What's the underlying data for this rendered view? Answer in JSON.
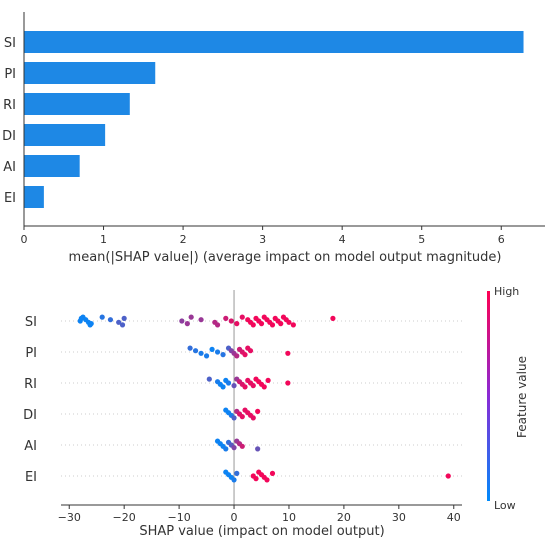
{
  "colors": {
    "bar": "#1e88e5",
    "low": "#008afb",
    "high": "#ff0052",
    "axis": "#333333",
    "grid": "#cccccc",
    "zero_line": "#999999"
  },
  "chart_data": [
    {
      "type": "bar",
      "orientation": "horizontal",
      "categories": [
        "SI",
        "PI",
        "RI",
        "DI",
        "AI",
        "EI"
      ],
      "values": [
        6.28,
        1.65,
        1.33,
        1.02,
        0.7,
        0.25
      ],
      "xlabel": "mean(|SHAP value|) (average impact on model output magnitude)",
      "xlim": [
        0,
        6.55
      ],
      "xticks": [
        "0",
        "1",
        "2",
        "3",
        "4",
        "5",
        "6"
      ],
      "grid": false
    },
    {
      "type": "scatter",
      "subtype": "beeswarm",
      "categories": [
        "SI",
        "PI",
        "RI",
        "DI",
        "AI",
        "EI"
      ],
      "xlabel": "SHAP value (impact on model output)",
      "xlim": [
        -31.5,
        41.5
      ],
      "xticks": [
        "−30",
        "−20",
        "−10",
        "0",
        "10",
        "20",
        "30",
        "40"
      ],
      "colorbar": {
        "label": "Feature value",
        "high": "High",
        "low": "Low"
      },
      "series": [
        {
          "category": "SI",
          "points": [
            [
              -27.5,
              0.05
            ],
            [
              -27,
              0.05
            ],
            [
              -26.5,
              0.05
            ],
            [
              -26.2,
              0.05
            ],
            [
              -27.8,
              0.05
            ],
            [
              -28,
              0.05
            ],
            [
              -26,
              0.05
            ],
            [
              -24,
              0.15
            ],
            [
              -22.5,
              0.2
            ],
            [
              -21,
              0.3
            ],
            [
              -20.3,
              0.3
            ],
            [
              -20,
              0.3
            ],
            [
              -9.5,
              0.55
            ],
            [
              -8.5,
              0.6
            ],
            [
              -7.8,
              0.6
            ],
            [
              -6,
              0.6
            ],
            [
              -3.5,
              0.7
            ],
            [
              -3,
              0.7
            ],
            [
              -1.5,
              0.8
            ],
            [
              -0.5,
              0.85
            ],
            [
              0.5,
              0.9
            ],
            [
              1.5,
              0.9
            ],
            [
              2.5,
              0.95
            ],
            [
              3,
              0.95
            ],
            [
              3.5,
              0.95
            ],
            [
              4,
              0.95
            ],
            [
              4.5,
              0.95
            ],
            [
              5,
              0.95
            ],
            [
              5.5,
              0.95
            ],
            [
              6,
              0.95
            ],
            [
              6.5,
              0.95
            ],
            [
              7,
              0.95
            ],
            [
              7.5,
              0.95
            ],
            [
              8,
              0.95
            ],
            [
              8.5,
              0.95
            ],
            [
              9,
              0.95
            ],
            [
              9.5,
              0.95
            ],
            [
              10,
              0.95
            ],
            [
              10.8,
              0.95
            ],
            [
              18,
              0.95
            ]
          ]
        },
        {
          "category": "PI",
          "points": [
            [
              -8,
              0.2
            ],
            [
              -7,
              0.15
            ],
            [
              -6,
              0.1
            ],
            [
              -5,
              0.1
            ],
            [
              -4,
              0.05
            ],
            [
              -3,
              0.1
            ],
            [
              -2,
              0.15
            ],
            [
              -1,
              0.3
            ],
            [
              -0.5,
              0.5
            ],
            [
              0,
              0.6
            ],
            [
              0.5,
              0.7
            ],
            [
              1,
              0.8
            ],
            [
              1.5,
              0.85
            ],
            [
              2,
              0.9
            ],
            [
              2.5,
              0.9
            ],
            [
              3,
              0.9
            ],
            [
              9.8,
              0.95
            ]
          ]
        },
        {
          "category": "RI",
          "points": [
            [
              -4.5,
              0.3
            ],
            [
              -3,
              0.1
            ],
            [
              -2.5,
              0.05
            ],
            [
              -2,
              0.05
            ],
            [
              -1.5,
              0.05
            ],
            [
              -1,
              0.1
            ],
            [
              0,
              0.4
            ],
            [
              0.5,
              0.6
            ],
            [
              1,
              0.8
            ],
            [
              1.5,
              0.85
            ],
            [
              2,
              0.9
            ],
            [
              2.5,
              0.9
            ],
            [
              3,
              0.9
            ],
            [
              3.5,
              0.9
            ],
            [
              4,
              0.95
            ],
            [
              4.5,
              0.95
            ],
            [
              5,
              0.95
            ],
            [
              5.5,
              0.95
            ],
            [
              6.2,
              0.95
            ],
            [
              9.8,
              0.95
            ]
          ]
        },
        {
          "category": "DI",
          "points": [
            [
              -1.5,
              0.05
            ],
            [
              -1,
              0.05
            ],
            [
              -0.5,
              0.1
            ],
            [
              0,
              0.3
            ],
            [
              0.5,
              0.7
            ],
            [
              1,
              0.85
            ],
            [
              1.5,
              0.9
            ],
            [
              2,
              0.9
            ],
            [
              2.5,
              0.9
            ],
            [
              3,
              0.9
            ],
            [
              3.5,
              0.9
            ],
            [
              4.3,
              0.95
            ]
          ]
        },
        {
          "category": "AI",
          "points": [
            [
              -3,
              0.05
            ],
            [
              -2.5,
              0.05
            ],
            [
              -2,
              0.05
            ],
            [
              -1.5,
              0.1
            ],
            [
              -1,
              0.2
            ],
            [
              -0.5,
              0.35
            ],
            [
              0,
              0.5
            ],
            [
              0.5,
              0.6
            ],
            [
              1,
              0.7
            ],
            [
              1.5,
              0.8
            ],
            [
              4.3,
              0.4
            ]
          ]
        },
        {
          "category": "EI",
          "points": [
            [
              -1.5,
              0.05
            ],
            [
              -1,
              0.05
            ],
            [
              -0.5,
              0.05
            ],
            [
              0,
              0.1
            ],
            [
              0.5,
              0.2
            ],
            [
              3.5,
              0.95
            ],
            [
              4,
              0.95
            ],
            [
              4.5,
              0.95
            ],
            [
              5,
              0.95
            ],
            [
              5.5,
              0.95
            ],
            [
              6,
              0.95
            ],
            [
              7,
              0.95
            ],
            [
              39,
              0.95
            ]
          ]
        }
      ]
    }
  ]
}
